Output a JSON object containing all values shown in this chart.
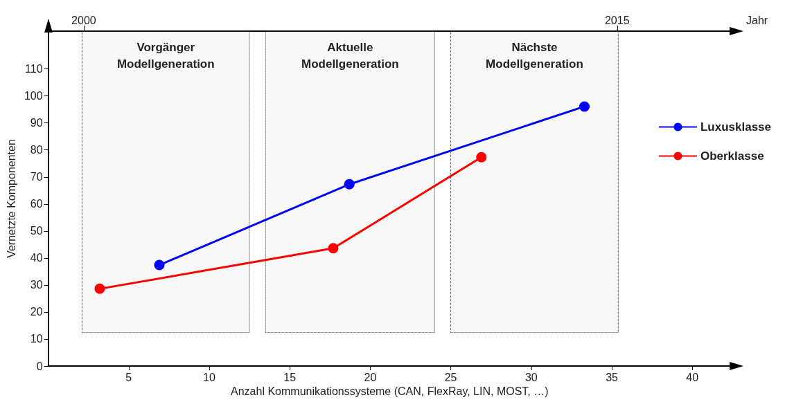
{
  "chart_data": {
    "type": "line",
    "xlabel": "Anzahl Kommunikationssysteme (CAN, FlexRay, LIN, MOST, …)",
    "ylabel": "Vernetzte Komponenten",
    "x2label": "Jahr",
    "series": [
      {
        "name": "Luxusklasse",
        "color": "#0000ff",
        "x": [
          6.9,
          18.7,
          33.3
        ],
        "values": [
          37.4,
          67.3,
          96.1
        ]
      },
      {
        "name": "Oberklasse",
        "color": "#ff0000",
        "x": [
          3.2,
          17.7,
          26.9
        ],
        "values": [
          28.6,
          43.6,
          77.3
        ]
      }
    ],
    "xlim": [
      0,
      42.4
    ],
    "xticks": [
      5,
      10,
      15,
      20,
      25,
      30,
      35,
      40
    ],
    "ylim": [
      0,
      124
    ],
    "yticks": [
      0,
      10,
      20,
      30,
      40,
      50,
      60,
      70,
      80,
      90,
      100,
      110
    ],
    "x2lim": [
      1999.0,
      2018.2
    ],
    "x2ticks": [
      2000,
      2015
    ],
    "bands": [
      {
        "axis": "x",
        "from": 2.1,
        "to": 12.5,
        "label": "Vorgänger\nModellgeneration"
      },
      {
        "axis": "x",
        "from": 13.5,
        "to": 24.0,
        "label": "Aktuelle\nModellgeneration"
      },
      {
        "axis": "x",
        "from": 25.0,
        "to": 35.4,
        "label": "Nächste\nModellgeneration"
      }
    ],
    "marker": "circle",
    "line_style": "solid",
    "grid": false,
    "legend": "right"
  }
}
